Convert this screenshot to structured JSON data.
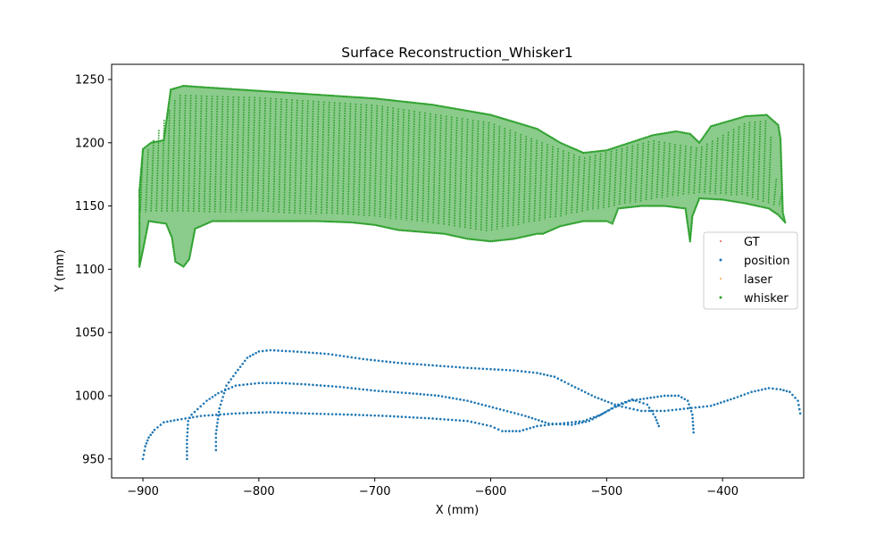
{
  "chart_data": {
    "type": "scatter",
    "title": "Surface Reconstruction_Whisker1",
    "xlabel": "X (mm)",
    "ylabel": "Y (mm)",
    "xlim": [
      -927,
      -330
    ],
    "ylim": [
      935,
      1262
    ],
    "x_ticks": [
      -900,
      -800,
      -700,
      -600,
      -500,
      -400
    ],
    "x_tick_labels": [
      "−900",
      "−800",
      "−700",
      "−600",
      "−500",
      "−400"
    ],
    "y_ticks": [
      950,
      1000,
      1050,
      1100,
      1150,
      1200,
      1250
    ],
    "y_tick_labels": [
      "950",
      "1000",
      "1050",
      "1100",
      "1150",
      "1200",
      "1250"
    ],
    "grid": false,
    "legend_position": "center-right",
    "series": [
      {
        "name": "GT",
        "color": "#d62728",
        "marker": "point",
        "points": []
      },
      {
        "name": "position",
        "color": "#1f77b4",
        "marker": "dot",
        "paths": [
          [
            [
              -900,
              950
            ],
            [
              -898,
              960
            ],
            [
              -895,
              967
            ],
            [
              -890,
              973
            ],
            [
              -882,
              979
            ],
            [
              -870,
              981
            ],
            [
              -850,
              984
            ],
            [
              -820,
              986
            ],
            [
              -790,
              987
            ],
            [
              -760,
              986
            ],
            [
              -720,
              985
            ],
            [
              -690,
              984
            ],
            [
              -650,
              982
            ],
            [
              -620,
              980
            ],
            [
              -600,
              976
            ],
            [
              -590,
              972
            ],
            [
              -575,
              972
            ],
            [
              -560,
              976
            ],
            [
              -540,
              978
            ],
            [
              -520,
              980
            ],
            [
              -505,
              985
            ],
            [
              -490,
              993
            ],
            [
              -478,
              997
            ],
            [
              -465,
              993
            ],
            [
              -458,
              983
            ],
            [
              -455,
              976
            ]
          ],
          [
            [
              -862,
              950
            ],
            [
              -862,
              965
            ],
            [
              -861,
              980
            ],
            [
              -858,
              985
            ],
            [
              -845,
              996
            ],
            [
              -835,
              1002
            ],
            [
              -820,
              1008
            ],
            [
              -800,
              1010
            ],
            [
              -780,
              1010
            ],
            [
              -760,
              1009
            ],
            [
              -730,
              1007
            ],
            [
              -700,
              1004
            ],
            [
              -670,
              1002
            ],
            [
              -645,
              1000
            ],
            [
              -620,
              996
            ],
            [
              -595,
              990
            ],
            [
              -570,
              984
            ],
            [
              -550,
              978
            ],
            [
              -530,
              977
            ],
            [
              -515,
              980
            ],
            [
              -495,
              990
            ],
            [
              -480,
              996
            ],
            [
              -465,
              998
            ],
            [
              -450,
              1000
            ],
            [
              -438,
              1000
            ],
            [
              -430,
              996
            ],
            [
              -426,
              985
            ],
            [
              -425,
              971
            ]
          ],
          [
            [
              -837,
              957
            ],
            [
              -837,
              970
            ],
            [
              -834,
              990
            ],
            [
              -828,
              1008
            ],
            [
              -820,
              1018
            ],
            [
              -810,
              1030
            ],
            [
              -800,
              1035
            ],
            [
              -790,
              1036
            ],
            [
              -770,
              1035
            ],
            [
              -740,
              1033
            ],
            [
              -710,
              1029
            ],
            [
              -680,
              1026
            ],
            [
              -650,
              1024
            ],
            [
              -620,
              1022
            ],
            [
              -600,
              1021
            ],
            [
              -580,
              1020
            ],
            [
              -560,
              1018
            ],
            [
              -545,
              1015
            ],
            [
              -530,
              1008
            ],
            [
              -510,
              999
            ],
            [
              -490,
              992
            ],
            [
              -470,
              988
            ],
            [
              -450,
              988
            ],
            [
              -430,
              990
            ],
            [
              -410,
              992
            ],
            [
              -390,
              998
            ],
            [
              -375,
              1003
            ],
            [
              -360,
              1006
            ],
            [
              -350,
              1005
            ],
            [
              -342,
              1003
            ],
            [
              -335,
              996
            ],
            [
              -333,
              986
            ]
          ]
        ]
      },
      {
        "name": "laser",
        "color": "#ff7f0e",
        "marker": "point",
        "points": []
      },
      {
        "name": "whisker",
        "color": "#2ca02c",
        "marker": "dot",
        "outline": [
          [
            -903,
            1162
          ],
          [
            -900,
            1195
          ],
          [
            -893,
            1200
          ],
          [
            -882,
            1202
          ],
          [
            -876,
            1242
          ],
          [
            -865,
            1245
          ],
          [
            -850,
            1244
          ],
          [
            -800,
            1241
          ],
          [
            -750,
            1238
          ],
          [
            -700,
            1235
          ],
          [
            -650,
            1230
          ],
          [
            -600,
            1222
          ],
          [
            -560,
            1211
          ],
          [
            -540,
            1200
          ],
          [
            -520,
            1192
          ],
          [
            -500,
            1194
          ],
          [
            -480,
            1200
          ],
          [
            -460,
            1206
          ],
          [
            -440,
            1209
          ],
          [
            -428,
            1207
          ],
          [
            -420,
            1200
          ],
          [
            -410,
            1213
          ],
          [
            -395,
            1217
          ],
          [
            -380,
            1221
          ],
          [
            -362,
            1222
          ],
          [
            -352,
            1214
          ],
          [
            -350,
            1203
          ],
          [
            -348,
            1145
          ],
          [
            -346,
            1137
          ],
          [
            -352,
            1143
          ],
          [
            -360,
            1148
          ],
          [
            -380,
            1152
          ],
          [
            -400,
            1155
          ],
          [
            -420,
            1156
          ],
          [
            -426,
            1142
          ],
          [
            -428,
            1122
          ],
          [
            -432,
            1148
          ],
          [
            -450,
            1150
          ],
          [
            -470,
            1150
          ],
          [
            -490,
            1148
          ],
          [
            -495,
            1136
          ],
          [
            -500,
            1138
          ],
          [
            -520,
            1138
          ],
          [
            -540,
            1134
          ],
          [
            -555,
            1128
          ],
          [
            -560,
            1128
          ],
          [
            -580,
            1124
          ],
          [
            -600,
            1122
          ],
          [
            -620,
            1124
          ],
          [
            -640,
            1128
          ],
          [
            -680,
            1131
          ],
          [
            -700,
            1135
          ],
          [
            -720,
            1137
          ],
          [
            -750,
            1138
          ],
          [
            -800,
            1138
          ],
          [
            -840,
            1138
          ],
          [
            -855,
            1132
          ],
          [
            -860,
            1108
          ],
          [
            -865,
            1102
          ],
          [
            -872,
            1106
          ],
          [
            -875,
            1125
          ],
          [
            -880,
            1136
          ],
          [
            -895,
            1138
          ],
          [
            -900,
            1115
          ],
          [
            -903,
            1102
          ]
        ],
        "inner_top": [
          [
            -895,
            1195
          ],
          [
            -870,
            1238
          ],
          [
            -800,
            1236
          ],
          [
            -700,
            1230
          ],
          [
            -600,
            1216
          ],
          [
            -520,
            1188
          ],
          [
            -460,
            1202
          ],
          [
            -420,
            1196
          ],
          [
            -380,
            1216
          ],
          [
            -360,
            1218
          ],
          [
            -352,
            1160
          ]
        ],
        "inner_bottom": [
          [
            -895,
            1145
          ],
          [
            -860,
            1145
          ],
          [
            -800,
            1145
          ],
          [
            -700,
            1142
          ],
          [
            -600,
            1130
          ],
          [
            -520,
            1145
          ],
          [
            -460,
            1155
          ],
          [
            -420,
            1160
          ],
          [
            -380,
            1158
          ],
          [
            -352,
            1150
          ]
        ],
        "stroke_count": 120
      }
    ]
  }
}
